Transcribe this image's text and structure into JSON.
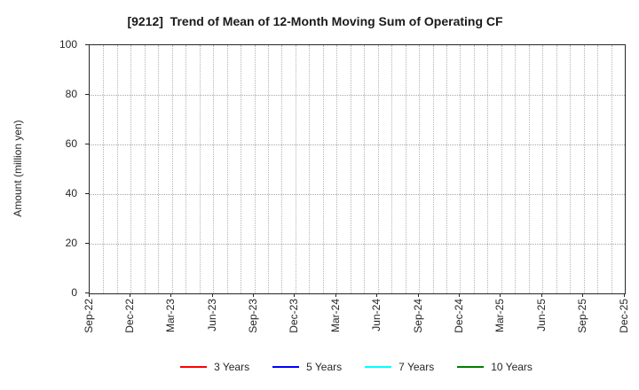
{
  "chart_data": {
    "type": "line",
    "title": "[9212]  Trend of Mean of 12-Month Moving Sum of Operating CF",
    "ylabel": "Amount (million yen)",
    "xlabel": "",
    "ylim": [
      0,
      100
    ],
    "y_ticks": [
      0,
      20,
      40,
      60,
      80,
      100
    ],
    "x_tick_labels": [
      "Sep-22",
      "Dec-22",
      "Mar-23",
      "Jun-23",
      "Sep-23",
      "Dec-23",
      "Mar-24",
      "Jun-24",
      "Sep-24",
      "Dec-24",
      "Mar-25",
      "Jun-25",
      "Sep-25",
      "Dec-25"
    ],
    "x_minor_intervals": 39,
    "grid": true,
    "grid_style": "dotted",
    "legend_position": "bottom",
    "series": [
      {
        "name": "3 Years",
        "color": "#ff0000",
        "values": []
      },
      {
        "name": "5 Years",
        "color": "#0000ff",
        "values": []
      },
      {
        "name": "7 Years",
        "color": "#00ffff",
        "values": []
      },
      {
        "name": "10 Years",
        "color": "#008000",
        "values": []
      }
    ]
  }
}
